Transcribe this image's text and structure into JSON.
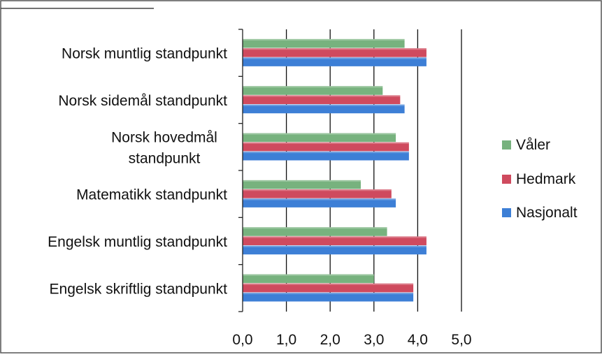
{
  "chart_data": {
    "type": "bar",
    "orientation": "horizontal",
    "categories": [
      [
        "Norsk muntlig standpunkt"
      ],
      [
        "Norsk sidemål standpunkt"
      ],
      [
        "Norsk hovedmål",
        "standpunkt"
      ],
      [
        "Matematikk standpunkt"
      ],
      [
        "Engelsk muntlig standpunkt"
      ],
      [
        "Engelsk skriftlig standpunkt"
      ]
    ],
    "series": [
      {
        "name": "Våler",
        "color": "#77b27e",
        "values": [
          3.7,
          3.2,
          3.5,
          2.7,
          3.3,
          3.0
        ]
      },
      {
        "name": "Hedmark",
        "color": "#cf4a5e",
        "values": [
          4.2,
          3.6,
          3.8,
          3.4,
          4.2,
          3.9
        ]
      },
      {
        "name": "Nasjonalt",
        "color": "#3d7fd6",
        "values": [
          4.2,
          3.7,
          3.8,
          3.5,
          4.2,
          3.9
        ]
      }
    ],
    "xticks": [
      "0,0",
      "1,0",
      "2,0",
      "3,0",
      "4,0",
      "5,0"
    ],
    "xlim": [
      0,
      5
    ],
    "grid": "vertical-major",
    "legend": "right"
  }
}
